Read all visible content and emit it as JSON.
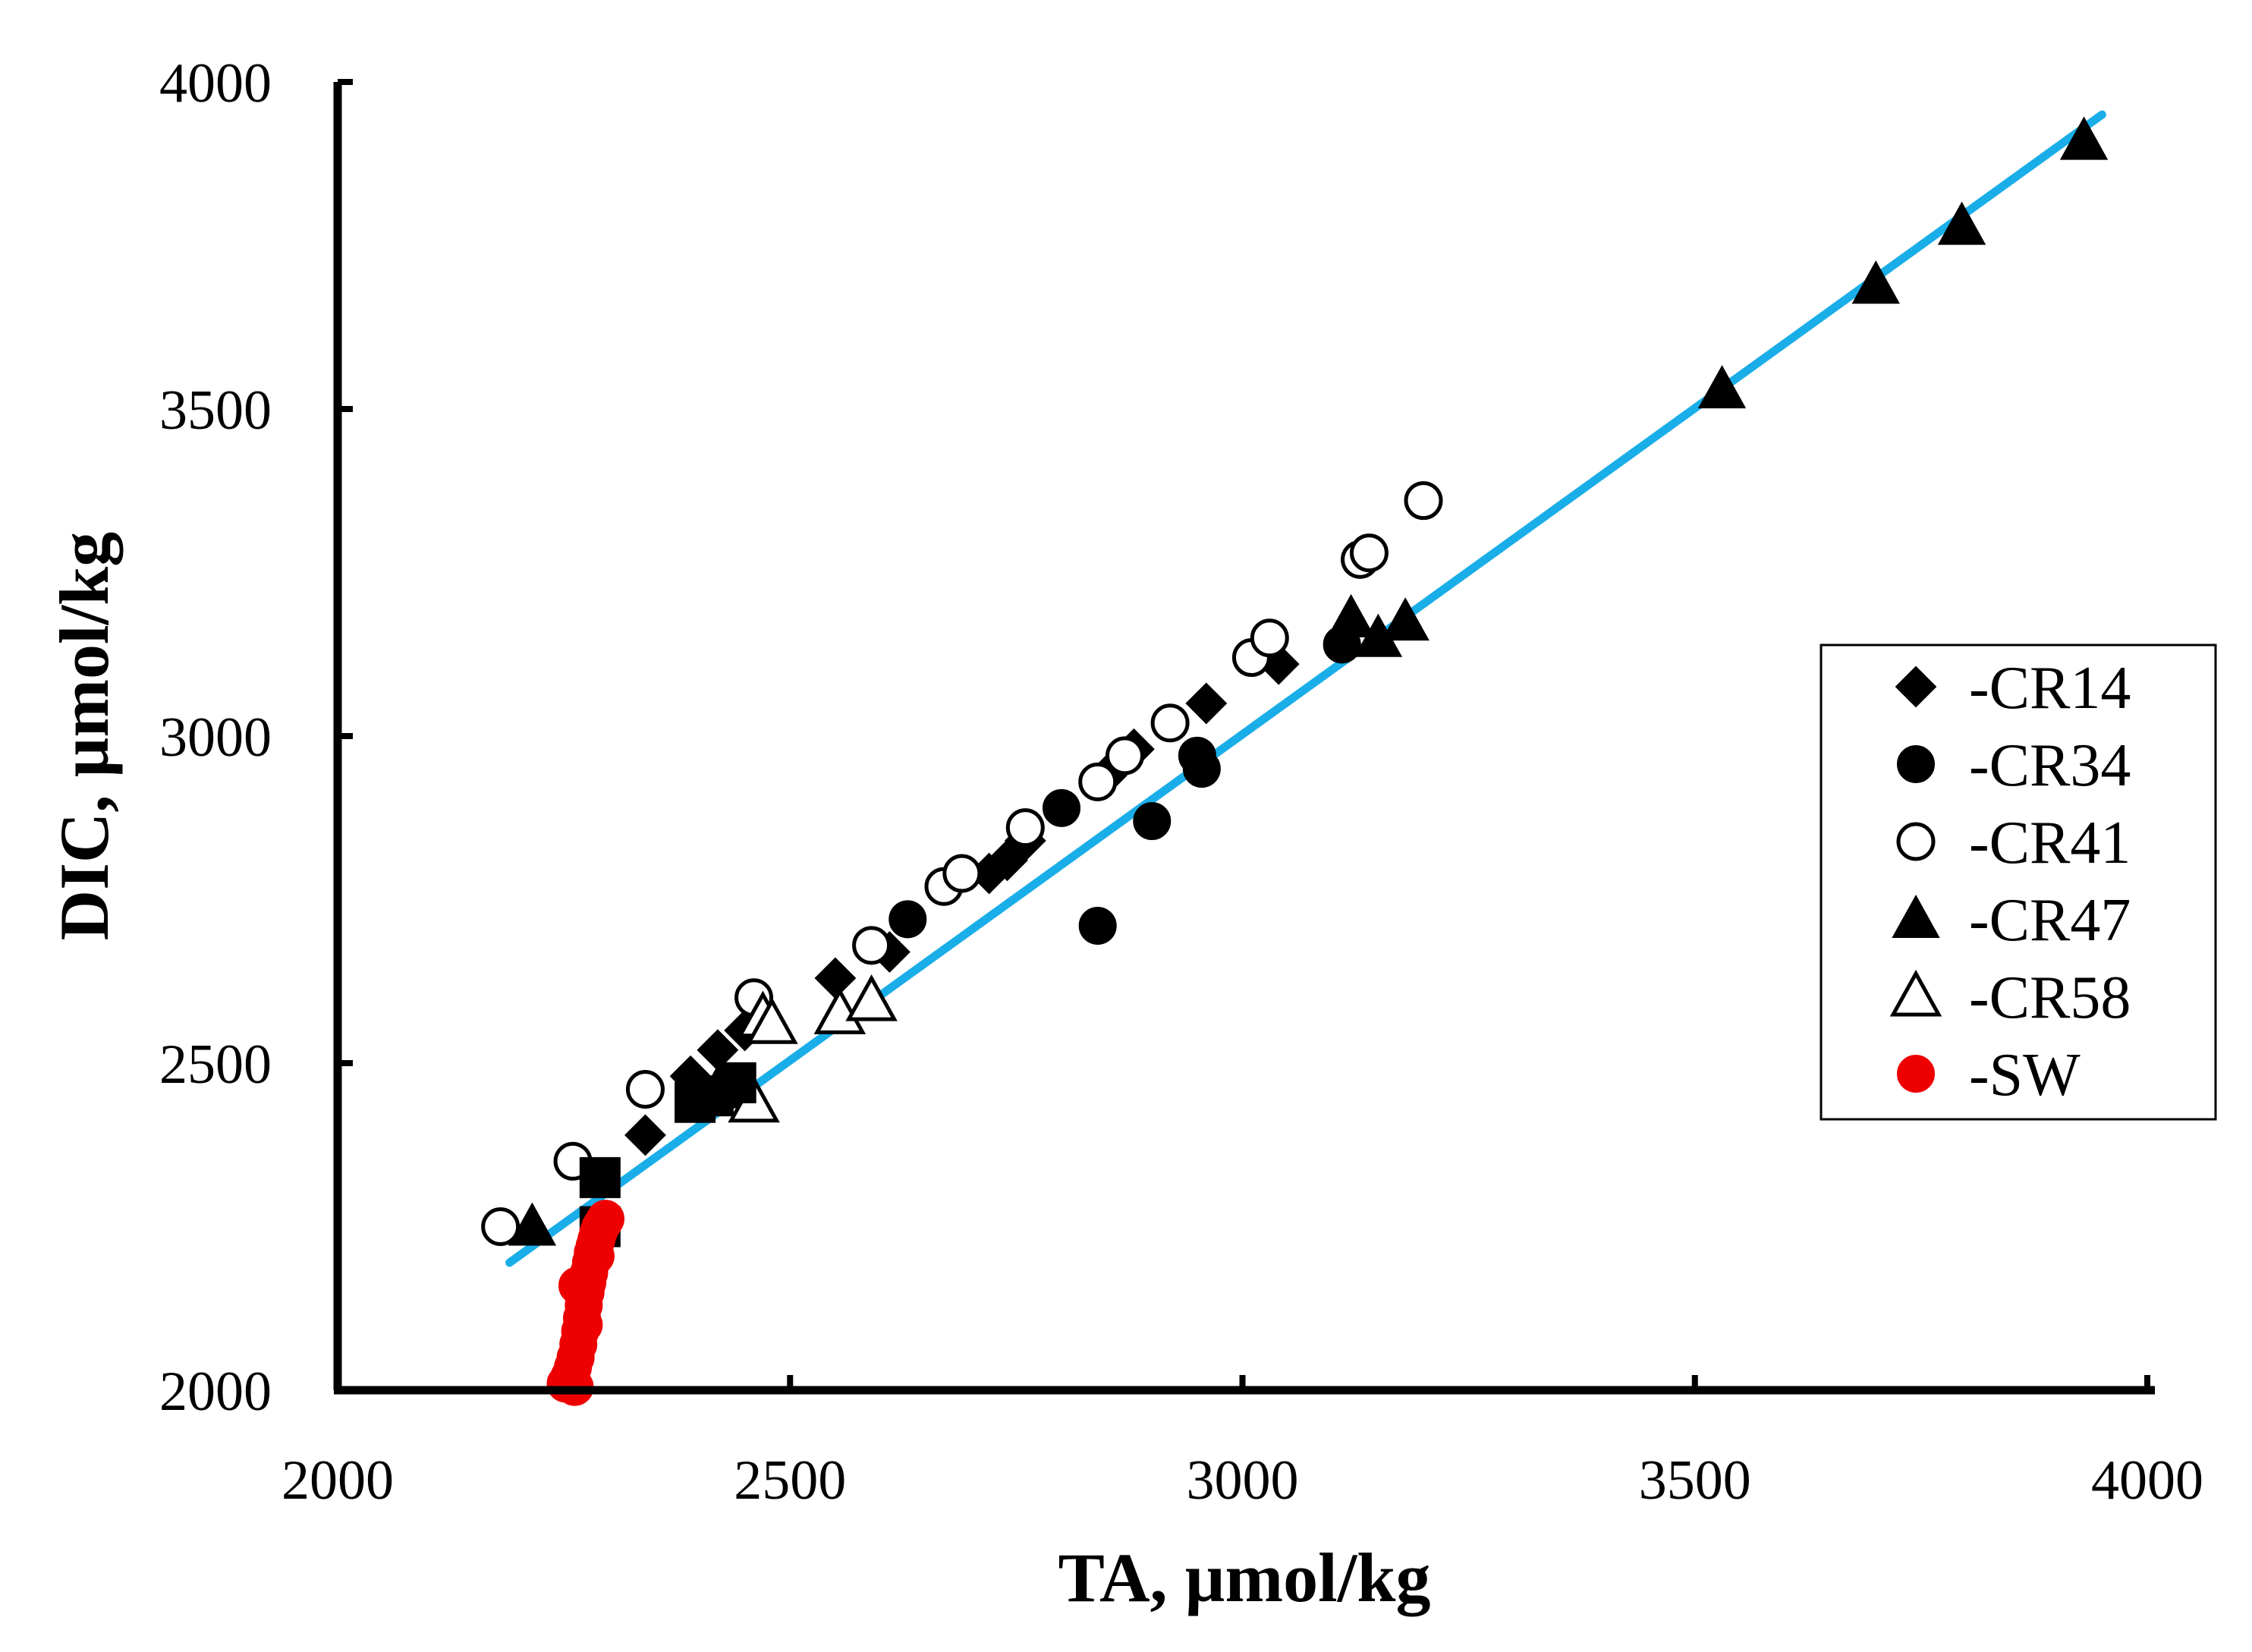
{
  "chart_data": {
    "type": "scatter",
    "xlabel": "TA, µmol/kg",
    "ylabel": "DIC, µmol/kg",
    "xlim": [
      2000,
      4000
    ],
    "ylim": [
      2000,
      4000
    ],
    "xticks": [
      "2000",
      "2500",
      "3000",
      "3500",
      "4000"
    ],
    "yticks": [
      "2000",
      "2500",
      "3000",
      "3500",
      "4000"
    ],
    "grid": false,
    "legend_position": "right",
    "fit_line": {
      "color": "#1aaee8",
      "points": [
        [
          2190,
          2195
        ],
        [
          3950,
          3950
        ]
      ]
    },
    "series": [
      {
        "name": "-CR14",
        "marker": "diamond",
        "filled": true,
        "color": "#000000",
        "x": [
          2340,
          2390,
          2420,
          2450,
          2550,
          2610,
          2720,
          2740,
          2760,
          2850,
          2880,
          2960,
          3040
        ],
        "y": [
          2390,
          2480,
          2520,
          2550,
          2630,
          2670,
          2790,
          2810,
          2840,
          2940,
          2980,
          3050,
          3110
        ]
      },
      {
        "name": "-CR34",
        "marker": "circle",
        "filled": true,
        "color": "#000000",
        "x": [
          2630,
          2800,
          2840,
          2900,
          2950,
          2955,
          3110
        ],
        "y": [
          2720,
          2890,
          2710,
          2870,
          2970,
          2950,
          3140
        ]
      },
      {
        "name": "-CR41",
        "marker": "circle",
        "filled": false,
        "color": "#000000",
        "x": [
          2180,
          2260,
          2340,
          2460,
          2590,
          2670,
          2690,
          2760,
          2840,
          2870,
          2920,
          3010,
          3030,
          3130,
          3140,
          3200
        ],
        "y": [
          2250,
          2350,
          2460,
          2600,
          2680,
          2770,
          2790,
          2860,
          2930,
          2970,
          3020,
          3120,
          3150,
          3270,
          3280,
          3360
        ]
      },
      {
        "name": "-CR47",
        "marker": "triangle",
        "filled": true,
        "color": "#000000",
        "x": [
          2215,
          2420,
          3120,
          3150,
          3180,
          3530,
          3700,
          3795,
          3930
        ],
        "y": [
          2250,
          2460,
          3180,
          3150,
          3175,
          3530,
          3690,
          3780,
          3910
        ]
      },
      {
        "name": "-CR58",
        "marker": "triangle",
        "filled": false,
        "color": "#000000",
        "x": [
          2460,
          2470,
          2480,
          2555,
          2590
        ],
        "y": [
          2440,
          2570,
          2560,
          2575,
          2595
        ]
      },
      {
        "name": "",
        "marker": "square",
        "filled": true,
        "color": "#000000",
        "x": [
          2290,
          2290,
          2395,
          2415,
          2440
        ],
        "y": [
          2325,
          2250,
          2440,
          2450,
          2470
        ]
      },
      {
        "name": "-SW",
        "marker": "circle",
        "filled": true,
        "color": "#ee0000",
        "x": [
          2252,
          2256,
          2260,
          2263,
          2266,
          2268,
          2270,
          2272,
          2274,
          2276,
          2278,
          2280,
          2282,
          2284,
          2286,
          2288,
          2290,
          2293,
          2296,
          2262,
          2272,
          2285,
          2265
        ],
        "y": [
          2010,
          2020,
          2035,
          2050,
          2070,
          2090,
          2110,
          2130,
          2150,
          2165,
          2180,
          2195,
          2210,
          2220,
          2230,
          2240,
          2248,
          2255,
          2262,
          2005,
          2100,
          2205,
          2160
        ]
      }
    ]
  }
}
